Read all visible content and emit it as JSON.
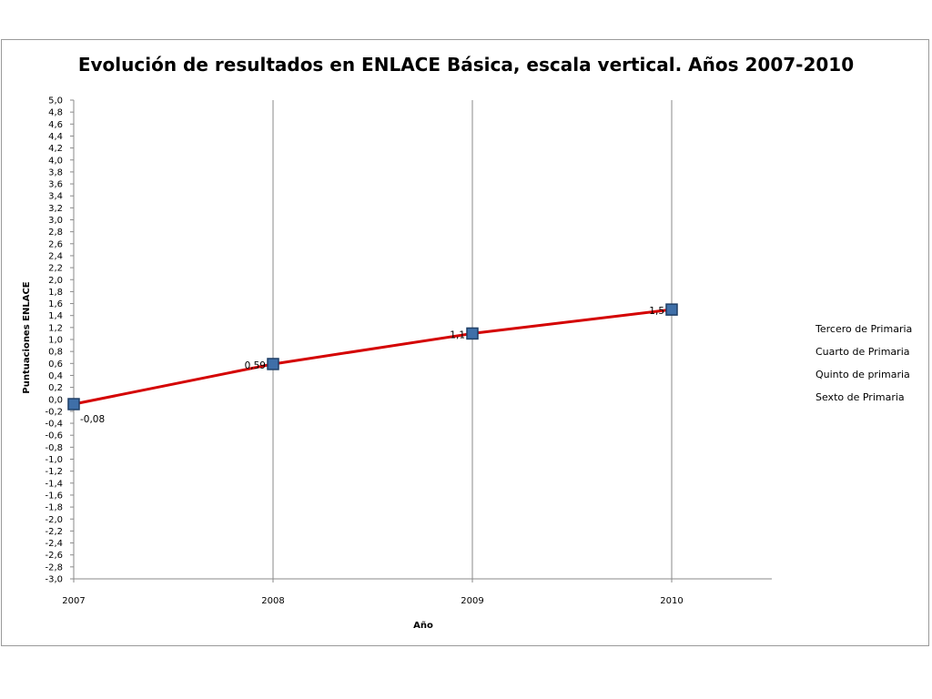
{
  "chart_data": {
    "type": "line",
    "title": "Evolución de resultados en ENLACE Básica, escala vertical. Años 2007-2010",
    "xlabel": "Año",
    "ylabel": "Puntuaciones ENLACE",
    "categories": [
      "2007",
      "2008",
      "2009",
      "2010"
    ],
    "ylim": [
      -3.0,
      5.0
    ],
    "ytick_step": 0.2,
    "grid": "vertical",
    "legend_position": "right",
    "legend": [
      "Tercero de Primaria",
      "Cuarto de Primaria",
      "Quinto de primaria",
      "Sexto de Primaria"
    ],
    "series": [
      {
        "values": [
          -0.08,
          0.59,
          1.1,
          1.5
        ],
        "labels": [
          "-0,08",
          "0,59",
          "1,1",
          "1,5"
        ],
        "line_color": "#d40000",
        "marker_color": "#3f6fa8",
        "marker_edge": "#1f3f66"
      }
    ]
  }
}
